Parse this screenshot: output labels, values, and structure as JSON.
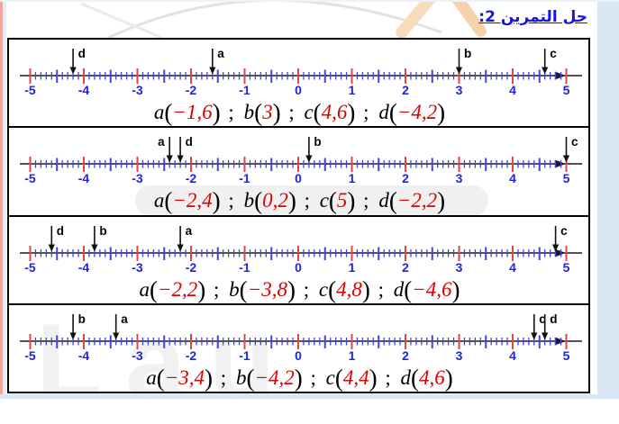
{
  "title": "حل التمرين 2:",
  "watermark": {
    "bottom_text": "Lau"
  },
  "colors": {
    "axis": "#1a1a1a",
    "tick_integer": "#e34444",
    "tick_minor": "#4343e0",
    "number": "#2323dd",
    "point": "#111111",
    "value": "#dd0000",
    "title": "#1515e0"
  },
  "axis": {
    "min": -5,
    "max": 5,
    "minor_step": 0.1,
    "labels": [
      "-5",
      "-4",
      "-3",
      "-2",
      "-1",
      "0",
      "1",
      "2",
      "3",
      "4",
      "5"
    ],
    "arrow_pos": 4.82
  },
  "formula_syntax": {
    "open": "(",
    "close": ")",
    "separator": " ; "
  },
  "sections": [
    {
      "points": [
        {
          "label": "d",
          "x": -4.2,
          "side": "right"
        },
        {
          "label": "a",
          "x": -1.6,
          "side": "right"
        },
        {
          "label": "b",
          "x": 3,
          "side": "right"
        },
        {
          "label": "c",
          "x": 4.6,
          "side": "right"
        }
      ],
      "formula": [
        {
          "name": "a",
          "value": "−1,6"
        },
        {
          "name": "b",
          "value": "3"
        },
        {
          "name": "c",
          "value": "4,6"
        },
        {
          "name": "d",
          "value": "−4,2"
        }
      ]
    },
    {
      "points": [
        {
          "label": "a",
          "x": -2.4,
          "side": "left"
        },
        {
          "label": "d",
          "x": -2.2,
          "side": "right"
        },
        {
          "label": "b",
          "x": 0.2,
          "side": "right"
        },
        {
          "label": "c",
          "x": 5,
          "side": "right"
        }
      ],
      "formula": [
        {
          "name": "a",
          "value": "−2,4"
        },
        {
          "name": "b",
          "value": "0,2"
        },
        {
          "name": "c",
          "value": "5"
        },
        {
          "name": "d",
          "value": "−2,2"
        }
      ]
    },
    {
      "points": [
        {
          "label": "d",
          "x": -4.6,
          "side": "right"
        },
        {
          "label": "b",
          "x": -3.8,
          "side": "right"
        },
        {
          "label": "a",
          "x": -2.2,
          "side": "right"
        },
        {
          "label": "c",
          "x": 4.8,
          "side": "right"
        }
      ],
      "formula": [
        {
          "name": "a",
          "value": "−2,2"
        },
        {
          "name": "b",
          "value": "−3,8"
        },
        {
          "name": "c",
          "value": "4,8"
        },
        {
          "name": "d",
          "value": "−4,6"
        }
      ]
    },
    {
      "points": [
        {
          "label": "b",
          "x": -4.2,
          "side": "right"
        },
        {
          "label": "a",
          "x": -3.4,
          "side": "right"
        },
        {
          "label": "c",
          "x": 4.4,
          "side": "right"
        },
        {
          "label": "d",
          "x": 4.6,
          "side": "right"
        }
      ],
      "formula": [
        {
          "name": "a",
          "value": "−3,4"
        },
        {
          "name": "b",
          "value": "−4,2"
        },
        {
          "name": "c",
          "value": "4,4"
        },
        {
          "name": "d",
          "value": "4,6"
        }
      ]
    }
  ]
}
